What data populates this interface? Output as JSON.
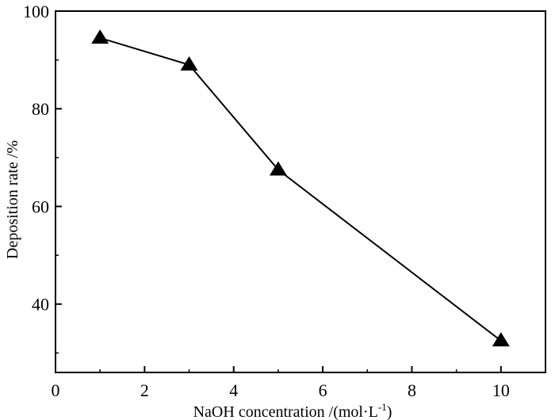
{
  "chart_data": {
    "type": "line",
    "title": "",
    "xlabel": {
      "main": "NaOH concentration /(mol·L",
      "sup": "-1",
      "close": ")"
    },
    "ylabel": "Deposition rate /%",
    "xlim": [
      0,
      11
    ],
    "ylim": [
      26,
      100
    ],
    "xticks": [
      0,
      2,
      4,
      6,
      8,
      10
    ],
    "yticks": [
      40,
      60,
      80,
      100
    ],
    "grid": false,
    "legend": "none",
    "marker": "triangle",
    "line_color": "#000000",
    "marker_color": "#000000",
    "series": [
      {
        "x": [
          1,
          3,
          5,
          10
        ],
        "values": [
          94.5,
          89.0,
          67.5,
          32.5
        ]
      }
    ]
  }
}
